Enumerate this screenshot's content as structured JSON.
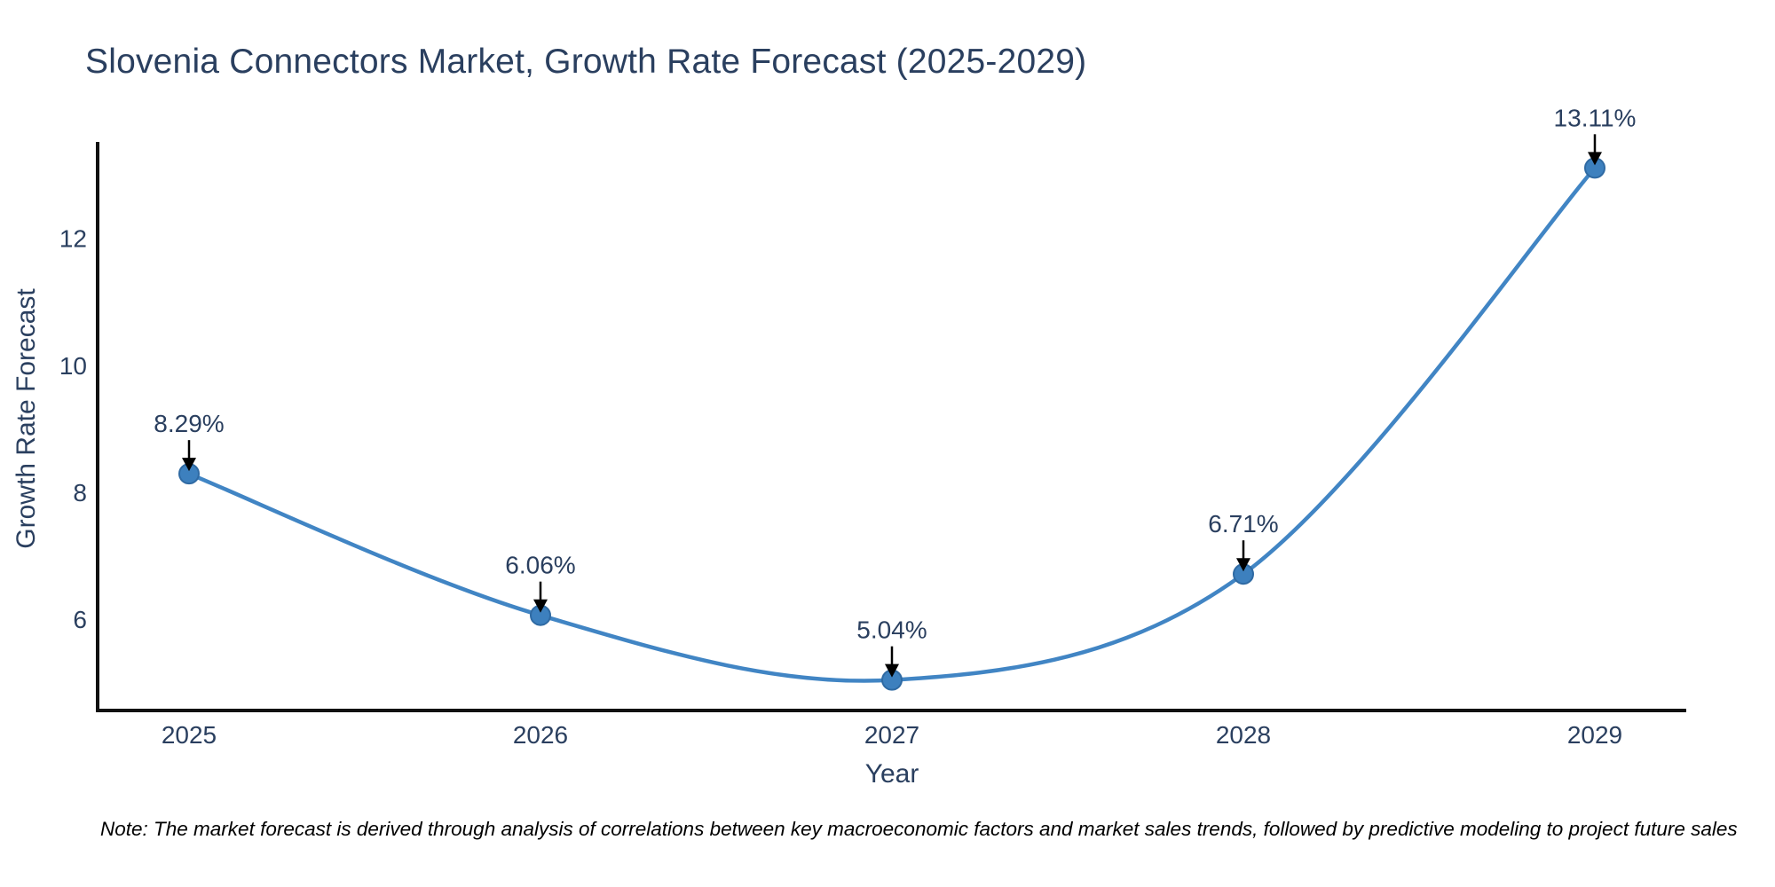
{
  "note": "Note: The market forecast is derived through analysis of correlations between key macroeconomic factors and market sales trends, followed by predictive modeling to project future sales",
  "chart_data": {
    "type": "line",
    "title": "Slovenia Connectors Market, Growth Rate Forecast (2025-2029)",
    "xlabel": "Year",
    "ylabel": "Growth Rate Forecast",
    "x": [
      2025,
      2026,
      2027,
      2028,
      2029
    ],
    "series": [
      {
        "name": "Growth Rate Forecast",
        "values": [
          8.29,
          6.06,
          5.04,
          6.71,
          13.11
        ],
        "point_labels": [
          "8.29%",
          "6.06%",
          "5.04%",
          "6.71%",
          "13.11%"
        ]
      }
    ],
    "x_tick_labels": [
      "2025",
      "2026",
      "2027",
      "2028",
      "2029"
    ],
    "y_ticks": [
      6,
      8,
      10,
      12
    ],
    "ylim": [
      4.56,
      13.52
    ],
    "grid": false,
    "legend": "none",
    "line_shape": "spline",
    "annotation_style": "label-above-with-down-arrow",
    "colors": {
      "line": "#4185c4",
      "marker_fill": "#3d80be",
      "marker_edge": "#2f6aa3",
      "axis": "#111111",
      "tick_text": "#2a3f5f",
      "label_text": "#2a3f5f",
      "arrow": "#000000",
      "note_text": "#000000",
      "background": "#ffffff"
    }
  }
}
